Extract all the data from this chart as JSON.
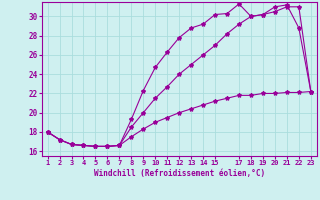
{
  "xlabel": "Windchill (Refroidissement éolien,°C)",
  "background_color": "#cff0f0",
  "line_color": "#990099",
  "grid_color": "#aadddd",
  "x_ticks": [
    1,
    2,
    3,
    4,
    5,
    6,
    7,
    8,
    9,
    10,
    11,
    12,
    13,
    14,
    15,
    17,
    18,
    19,
    20,
    21,
    22,
    23
  ],
  "ylim": [
    15.5,
    31.5
  ],
  "xlim": [
    0.5,
    23.5
  ],
  "yticks": [
    16,
    18,
    20,
    22,
    24,
    26,
    28,
    30
  ],
  "line1_x": [
    1,
    2,
    3,
    4,
    5,
    6,
    7,
    8,
    9,
    10,
    11,
    12,
    13,
    14,
    15,
    16,
    17,
    18,
    19,
    20,
    21,
    22,
    23
  ],
  "line1_y": [
    18,
    17.2,
    16.7,
    16.6,
    16.5,
    16.5,
    16.6,
    19.3,
    22.3,
    24.7,
    26.3,
    27.8,
    28.8,
    29.2,
    30.2,
    30.3,
    31.3,
    30.0,
    30.2,
    31.0,
    31.2,
    28.8,
    22.2
  ],
  "line2_x": [
    1,
    2,
    3,
    4,
    5,
    6,
    7,
    8,
    9,
    10,
    11,
    12,
    13,
    14,
    15,
    16,
    17,
    18,
    19,
    20,
    21,
    22,
    23
  ],
  "line2_y": [
    18,
    17.2,
    16.7,
    16.6,
    16.5,
    16.5,
    16.6,
    18.5,
    20.0,
    21.5,
    22.7,
    24.0,
    25.0,
    26.0,
    27.0,
    28.2,
    29.2,
    30.0,
    30.2,
    30.5,
    31.0,
    31.0,
    22.2
  ],
  "line3_x": [
    1,
    2,
    3,
    4,
    5,
    6,
    7,
    8,
    9,
    10,
    11,
    12,
    13,
    14,
    15,
    16,
    17,
    18,
    19,
    20,
    21,
    22,
    23
  ],
  "line3_y": [
    18,
    17.2,
    16.7,
    16.6,
    16.5,
    16.5,
    16.6,
    17.5,
    18.3,
    19.0,
    19.5,
    20.0,
    20.4,
    20.8,
    21.2,
    21.5,
    21.8,
    21.8,
    22.0,
    22.0,
    22.1,
    22.1,
    22.2
  ]
}
